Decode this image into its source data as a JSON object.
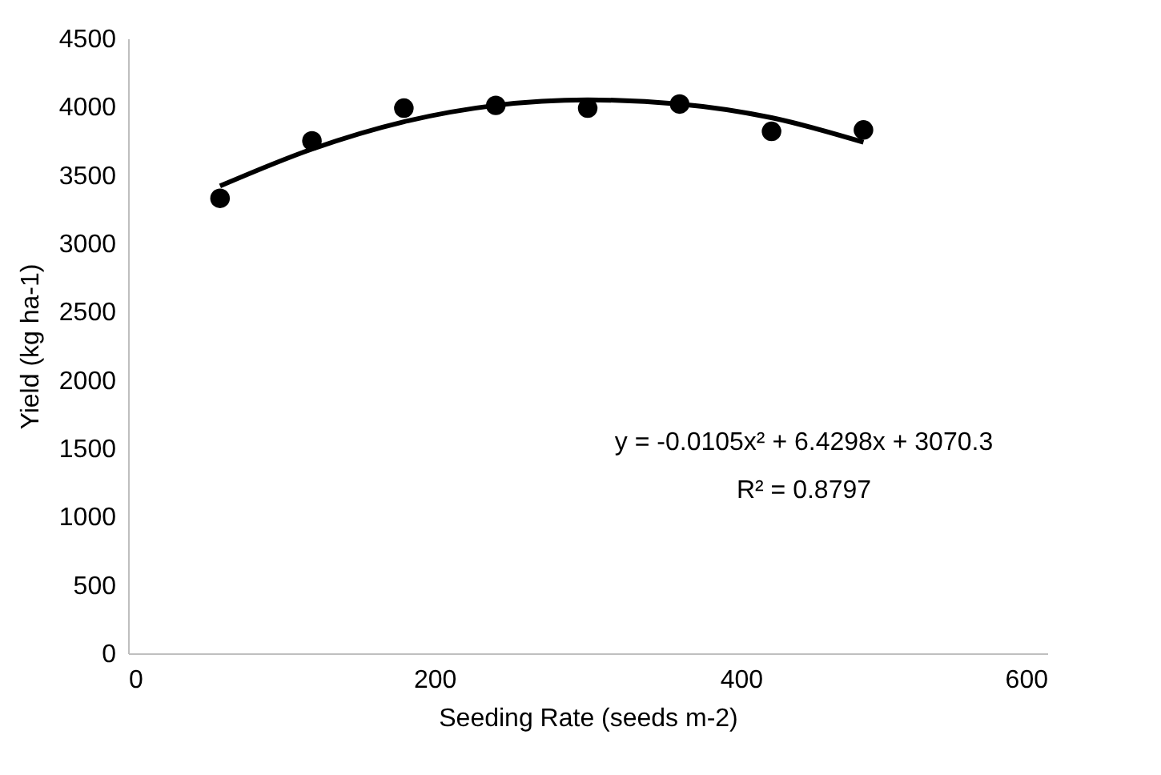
{
  "chart_data": {
    "type": "scatter",
    "xlabel": "Seeding Rate (seeds m-2)",
    "ylabel": "Yield (kg ha-1)",
    "x": [
      60,
      120,
      180,
      240,
      300,
      360,
      420,
      480
    ],
    "series": [
      {
        "color": "#000000",
        "marker": "circle",
        "values": [
          3330,
          3750,
          3990,
          4010,
          3990,
          4020,
          3820,
          3830
        ]
      },
      {
        "type": "line",
        "color": "#000000",
        "x": [
          60,
          120,
          180,
          240,
          300,
          360,
          420,
          480
        ],
        "values": [
          3420,
          3690,
          3890,
          4010,
          4050,
          4020,
          3920,
          3740
        ]
      }
    ],
    "xlim": [
      0,
      600
    ],
    "xticks": [
      0,
      200,
      400,
      600
    ],
    "ylim": [
      0,
      4500
    ],
    "yticks": [
      0,
      500,
      1000,
      1500,
      2000,
      2500,
      3000,
      3500,
      4000,
      4500
    ],
    "grid": false,
    "annotations": [
      "y = -0.0105x² + 6.4298x + 3070.3",
      "R² = 0.8797"
    ]
  }
}
